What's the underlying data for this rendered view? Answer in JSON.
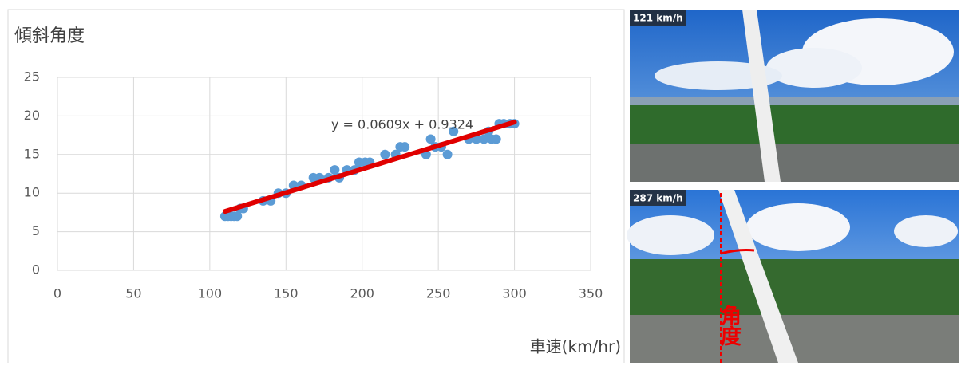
{
  "chart_data": {
    "type": "scatter",
    "title": "傾斜角度",
    "x_label": "車速(km/hr)",
    "x": [
      110,
      112,
      114,
      116,
      118,
      120,
      122,
      135,
      140,
      145,
      150,
      155,
      160,
      168,
      172,
      178,
      182,
      185,
      190,
      195,
      198,
      202,
      205,
      215,
      222,
      225,
      228,
      242,
      245,
      248,
      252,
      256,
      260,
      270,
      275,
      280,
      283,
      285,
      288,
      290,
      293,
      297,
      300
    ],
    "values": [
      7,
      7,
      7,
      7,
      7,
      8,
      8,
      9,
      9,
      10,
      10,
      11,
      11,
      12,
      12,
      12,
      13,
      12,
      13,
      13,
      14,
      14,
      14,
      15,
      15,
      16,
      16,
      15,
      17,
      16,
      16,
      15,
      18,
      17,
      17,
      17,
      18,
      17,
      17,
      19,
      19,
      19,
      19
    ],
    "color": "#5b9bd5",
    "trendline": {
      "equation": "y = 0.0609x + 0.9324",
      "x": [
        110,
        300
      ],
      "values": [
        7.6314,
        19.2024
      ],
      "color": "#e00000"
    },
    "xlim": [
      0,
      350
    ],
    "xticks": [
      0,
      50,
      100,
      150,
      200,
      250,
      300,
      350
    ],
    "ylim": [
      0,
      25
    ],
    "yticks": [
      0,
      5,
      10,
      15,
      20,
      25
    ],
    "grid": true
  },
  "photos": [
    {
      "label": "121 km/h"
    },
    {
      "label": "287 km/h",
      "annotation": "角度"
    }
  ]
}
